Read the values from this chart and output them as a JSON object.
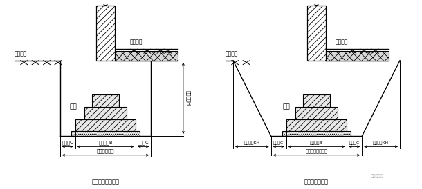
{
  "fig_width": 6.1,
  "fig_height": 2.74,
  "dpi": 100,
  "bg_color": "#ffffff",
  "title1": "不放坡的基槽断面",
  "title2": "放坡的基槽断面",
  "label_waidi1": "室外地坪",
  "label_neidi1": "室内地坪",
  "label_waidi2": "室外地坪",
  "label_neidi2": "室内地坪",
  "label_jichi1": "基础",
  "label_jichi2": "基础",
  "label_gongzuoC_left1": "工作面C",
  "label_gongzuoC_right1": "工作面C",
  "label_jichukuan1": "基础宽度B",
  "label_jicao_kuan1": "基槽开挖宽度",
  "label_kaijue": "开挖深度H",
  "label_gongzuoC_left2": "工作面C",
  "label_gongzuoC_right2": "工作面C",
  "label_fangpokuan_left": "放坡宽度KH",
  "label_fangpokuan_right": "放坡宽度KH",
  "label_jichukuan2": "基础宽度B",
  "label_jicao_kuan2": "基槽基底开挖宽度",
  "watermark": "建筑大家园"
}
